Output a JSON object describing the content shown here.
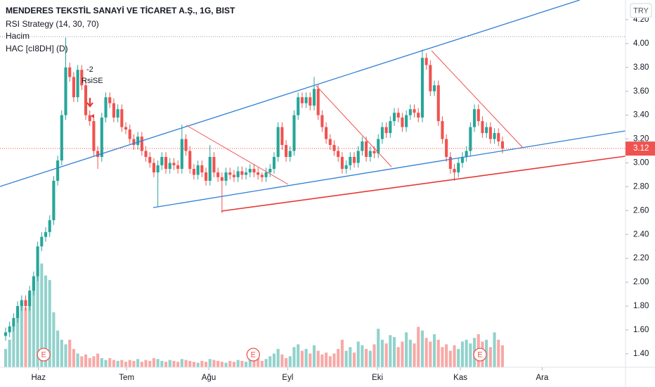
{
  "chart_data": {
    "type": "candlestick",
    "title": "MENDERES TEKSTİL SANAYİ VE TİCARET A.Ş., 1G, BIST",
    "indicators": [
      "RSI Strategy (14, 30, 70)",
      "Hacim",
      "HAC [cI8DH] (D)"
    ],
    "currency": "TRY",
    "up_color": "#26a69a",
    "down_color": "#ef5350",
    "annotations": [
      "-2",
      "RsiSE"
    ],
    "events": [
      {
        "x": 9.5,
        "label": "E"
      },
      {
        "x": 61.8,
        "label": "E"
      },
      {
        "x": 118.4,
        "label": "E"
      }
    ],
    "open": [
      1.55,
      1.58,
      1.63,
      1.7,
      1.8,
      1.85,
      1.8,
      1.93,
      2.05,
      2.3,
      2.38,
      2.42,
      2.52,
      2.85,
      3.02,
      3.4,
      3.8,
      3.72,
      3.55,
      3.78,
      3.65,
      3.4,
      3.35,
      3.1,
      3.05,
      3.38,
      3.55,
      3.5,
      3.38,
      3.45,
      3.3,
      3.28,
      3.2,
      3.15,
      3.22,
      3.1,
      3.05,
      3.0,
      2.92,
      2.98,
      3.05,
      2.95,
      3.0,
      2.98,
      2.95,
      3.2,
      3.1,
      2.95,
      2.9,
      2.98,
      2.92,
      2.85,
      3.05,
      2.92,
      2.88,
      2.85,
      2.92,
      2.9,
      2.88,
      2.93,
      2.9,
      2.92,
      2.95,
      2.92,
      2.9,
      2.88,
      2.92,
      2.95,
      3.05,
      3.3,
      3.15,
      3.05,
      3.1,
      3.4,
      3.55,
      3.5,
      3.55,
      3.48,
      3.62,
      3.4,
      3.3,
      3.2,
      3.15,
      3.1,
      3.05,
      2.95,
      2.98,
      3.05,
      3.0,
      3.1,
      3.18,
      3.05,
      3.1,
      3.08,
      3.2,
      3.3,
      3.25,
      3.35,
      3.42,
      3.38,
      3.3,
      3.4,
      3.45,
      3.42,
      3.38,
      3.88,
      3.82,
      3.6,
      3.65,
      3.35,
      3.2,
      3.05,
      2.95,
      2.92,
      3.0,
      3.05,
      3.1,
      3.3,
      3.45,
      3.35,
      3.25,
      3.3,
      3.2,
      3.25,
      3.18
    ],
    "high": [
      1.62,
      1.67,
      1.74,
      1.84,
      1.89,
      1.89,
      1.97,
      2.09,
      2.34,
      2.42,
      2.46,
      2.56,
      2.89,
      3.06,
      3.44,
      4.05,
      3.84,
      3.76,
      3.82,
      3.82,
      3.69,
      3.44,
      3.39,
      3.14,
      3.42,
      3.59,
      3.59,
      3.54,
      3.49,
      3.49,
      3.34,
      3.32,
      3.24,
      3.26,
      3.26,
      3.14,
      3.09,
      3.04,
      3.02,
      3.09,
      3.09,
      3.04,
      3.04,
      3.02,
      3.32,
      3.24,
      3.14,
      2.99,
      3.02,
      3.02,
      2.96,
      3.15,
      3.09,
      2.96,
      2.92,
      2.96,
      2.96,
      2.94,
      2.97,
      2.97,
      2.96,
      2.99,
      2.99,
      2.96,
      2.92,
      2.96,
      2.99,
      3.09,
      3.34,
      3.34,
      3.19,
      3.14,
      3.44,
      3.59,
      3.59,
      3.59,
      3.59,
      3.72,
      3.66,
      3.44,
      3.34,
      3.24,
      3.19,
      3.14,
      3.09,
      3.02,
      3.09,
      3.09,
      3.14,
      3.22,
      3.22,
      3.14,
      3.14,
      3.24,
      3.34,
      3.34,
      3.39,
      3.46,
      3.46,
      3.42,
      3.44,
      3.49,
      3.49,
      3.46,
      3.95,
      3.92,
      3.86,
      3.69,
      3.69,
      3.39,
      3.24,
      3.09,
      2.99,
      3.04,
      3.09,
      3.14,
      3.34,
      3.49,
      3.49,
      3.39,
      3.34,
      3.34,
      3.29,
      3.29,
      3.22
    ],
    "low": [
      1.51,
      1.54,
      1.59,
      1.66,
      1.76,
      1.76,
      1.76,
      1.89,
      2.01,
      2.26,
      2.34,
      2.38,
      2.48,
      2.81,
      2.98,
      3.36,
      3.68,
      3.51,
      3.51,
      3.61,
      3.36,
      3.31,
      3.06,
      2.95,
      3.01,
      3.34,
      3.46,
      3.34,
      3.34,
      3.26,
      3.24,
      3.16,
      3.11,
      3.11,
      3.06,
      3.01,
      2.96,
      2.88,
      2.63,
      2.94,
      2.91,
      2.91,
      2.94,
      2.91,
      2.91,
      3.06,
      2.91,
      2.86,
      2.86,
      2.88,
      2.81,
      2.81,
      2.88,
      2.84,
      2.58,
      2.81,
      2.86,
      2.84,
      2.84,
      2.86,
      2.86,
      2.88,
      2.88,
      2.86,
      2.84,
      2.84,
      2.88,
      2.91,
      3.01,
      3.11,
      3.01,
      3.01,
      3.06,
      3.36,
      3.46,
      3.46,
      3.44,
      3.44,
      3.36,
      3.26,
      3.16,
      3.11,
      3.06,
      3.01,
      2.91,
      2.91,
      2.94,
      2.96,
      2.96,
      3.06,
      3.01,
      3.01,
      3.04,
      3.04,
      3.16,
      3.21,
      3.21,
      3.31,
      3.34,
      3.26,
      3.26,
      3.36,
      3.38,
      3.34,
      3.34,
      3.78,
      3.56,
      3.56,
      3.31,
      3.16,
      3.01,
      2.91,
      2.85,
      2.88,
      2.96,
      3.01,
      3.06,
      3.26,
      3.31,
      3.21,
      3.21,
      3.16,
      3.16,
      3.14,
      3.08
    ],
    "close": [
      1.58,
      1.63,
      1.7,
      1.8,
      1.85,
      1.8,
      1.93,
      2.05,
      2.3,
      2.38,
      2.42,
      2.52,
      2.85,
      3.02,
      3.4,
      3.8,
      3.72,
      3.55,
      3.78,
      3.65,
      3.4,
      3.35,
      3.1,
      3.05,
      3.38,
      3.55,
      3.5,
      3.38,
      3.45,
      3.3,
      3.28,
      3.2,
      3.15,
      3.22,
      3.1,
      3.05,
      3.0,
      2.92,
      2.98,
      3.05,
      2.95,
      3.0,
      2.98,
      2.95,
      3.2,
      3.1,
      2.95,
      2.9,
      2.98,
      2.92,
      2.85,
      3.05,
      2.92,
      2.88,
      2.85,
      2.92,
      2.9,
      2.88,
      2.93,
      2.9,
      2.92,
      2.95,
      2.92,
      2.9,
      2.88,
      2.92,
      2.95,
      3.05,
      3.3,
      3.15,
      3.05,
      3.1,
      3.4,
      3.55,
      3.5,
      3.55,
      3.48,
      3.62,
      3.4,
      3.3,
      3.2,
      3.15,
      3.1,
      3.05,
      2.95,
      2.98,
      3.05,
      3.0,
      3.1,
      3.18,
      3.05,
      3.1,
      3.08,
      3.2,
      3.3,
      3.25,
      3.35,
      3.42,
      3.38,
      3.3,
      3.4,
      3.45,
      3.42,
      3.38,
      3.88,
      3.82,
      3.6,
      3.65,
      3.35,
      3.2,
      3.05,
      2.95,
      2.92,
      3.0,
      3.05,
      3.1,
      3.3,
      3.45,
      3.35,
      3.25,
      3.3,
      3.2,
      3.25,
      3.18,
      3.12
    ],
    "volume": [
      20,
      30,
      45,
      60,
      70,
      65,
      80,
      95,
      110,
      113,
      100,
      95,
      60,
      40,
      30,
      25,
      30,
      20,
      15,
      12,
      14,
      10,
      12,
      15,
      10,
      8,
      10,
      8,
      7,
      8,
      6,
      8,
      7,
      9,
      6,
      8,
      7,
      10,
      9,
      7,
      6,
      8,
      7,
      6,
      9,
      8,
      7,
      6,
      5,
      7,
      6,
      9,
      8,
      7,
      6,
      5,
      7,
      6,
      8,
      7,
      6,
      9,
      8,
      10,
      7,
      9,
      12,
      15,
      20,
      14,
      10,
      12,
      22,
      25,
      18,
      20,
      15,
      24,
      18,
      14,
      16,
      12,
      15,
      20,
      30,
      18,
      22,
      16,
      28,
      24,
      20,
      18,
      25,
      42,
      30,
      26,
      35,
      33,
      22,
      28,
      38,
      30,
      26,
      44,
      40,
      32,
      28,
      36,
      30,
      22,
      25,
      18,
      24,
      20,
      28,
      30,
      26,
      32,
      36,
      28,
      30,
      22,
      38,
      30,
      24
    ],
    "xlim": [
      -1.4,
      154.7
    ],
    "xticks": [
      {
        "value": 8.2,
        "label": "Haz"
      },
      {
        "value": 30.2,
        "label": "Tem"
      },
      {
        "value": 50.7,
        "label": "Ağu"
      },
      {
        "value": 70.4,
        "label": "Eyl"
      },
      {
        "value": 92.8,
        "label": "Eki"
      },
      {
        "value": 113.5,
        "label": "Kas"
      },
      {
        "value": 133.9,
        "label": "Ara"
      }
    ],
    "ylim": [
      1.287,
      4.365
    ],
    "yticks": [
      {
        "value": 1.4,
        "label": "1.40"
      },
      {
        "value": 1.6,
        "label": "1.60"
      },
      {
        "value": 1.8,
        "label": "1.80"
      },
      {
        "value": 2.0,
        "label": "2.00"
      },
      {
        "value": 2.2,
        "label": "2.20"
      },
      {
        "value": 2.4,
        "label": "2.40"
      },
      {
        "value": 2.6,
        "label": "2.60"
      },
      {
        "value": 2.8,
        "label": "2.80"
      },
      {
        "value": 3.0,
        "label": "3.00"
      },
      {
        "value": 3.2,
        "label": "3.20"
      },
      {
        "value": 3.4,
        "label": "3.40"
      },
      {
        "value": 3.6,
        "label": "3.60"
      },
      {
        "value": 3.8,
        "label": "3.80"
      },
      {
        "value": 4.0,
        "label": "4.00"
      },
      {
        "value": 4.2,
        "label": "4.20"
      }
    ],
    "y2lim": [
      0,
      400
    ]
  }
}
